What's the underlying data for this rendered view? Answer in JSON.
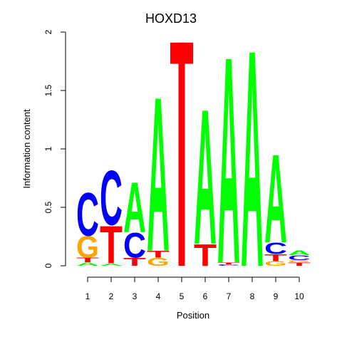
{
  "chart_data": {
    "type": "sequence-logo",
    "title": "HOXD13",
    "xlabel": "Position",
    "ylabel": "Information content",
    "ylim": [
      0,
      2
    ],
    "yticks": [
      "0",
      "0.5",
      "1",
      "1.5",
      "2"
    ],
    "positions": [
      "1",
      "2",
      "3",
      "4",
      "5",
      "6",
      "7",
      "8",
      "9",
      "10"
    ],
    "colors": {
      "A": "#00ff00",
      "C": "#0000ff",
      "G": "#ffa500",
      "T": "#ff0000"
    },
    "columns": [
      {
        "position": "1",
        "stack": [
          {
            "base": "A",
            "height": 0.03
          },
          {
            "base": "T",
            "height": 0.04
          },
          {
            "base": "G",
            "height": 0.19
          },
          {
            "base": "C",
            "height": 0.38
          }
        ]
      },
      {
        "position": "2",
        "stack": [
          {
            "base": "A",
            "height": 0.02
          },
          {
            "base": "T",
            "height": 0.33
          },
          {
            "base": "C",
            "height": 0.48
          }
        ]
      },
      {
        "position": "3",
        "stack": [
          {
            "base": "T",
            "height": 0.07
          },
          {
            "base": "C",
            "height": 0.22
          },
          {
            "base": "A",
            "height": 0.44
          }
        ]
      },
      {
        "position": "4",
        "stack": [
          {
            "base": "G",
            "height": 0.07
          },
          {
            "base": "T",
            "height": 0.06
          },
          {
            "base": "A",
            "height": 1.36
          }
        ]
      },
      {
        "position": "5",
        "stack": [
          {
            "base": "T",
            "height": 1.91
          }
        ]
      },
      {
        "position": "6",
        "stack": [
          {
            "base": "T",
            "height": 0.19
          },
          {
            "base": "A",
            "height": 1.19
          }
        ]
      },
      {
        "position": "7",
        "stack": [
          {
            "base": "C",
            "height": 0.01
          },
          {
            "base": "T",
            "height": 0.02
          },
          {
            "base": "A",
            "height": 1.82
          }
        ]
      },
      {
        "position": "8",
        "stack": [
          {
            "base": "A",
            "height": 1.91
          }
        ]
      },
      {
        "position": "9",
        "stack": [
          {
            "base": "G",
            "height": 0.04
          },
          {
            "base": "T",
            "height": 0.06
          },
          {
            "base": "C",
            "height": 0.1
          },
          {
            "base": "A",
            "height": 0.78
          }
        ]
      },
      {
        "position": "10",
        "stack": [
          {
            "base": "T",
            "height": 0.03
          },
          {
            "base": "G",
            "height": 0.02
          },
          {
            "base": "C",
            "height": 0.04
          },
          {
            "base": "A",
            "height": 0.04
          }
        ]
      }
    ]
  }
}
